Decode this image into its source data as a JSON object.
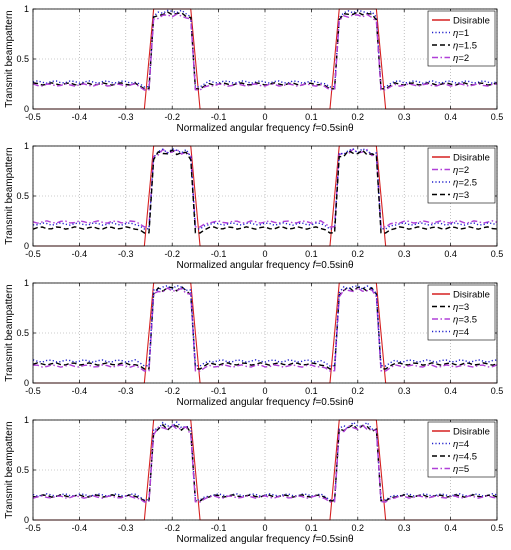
{
  "chart_data": [
    {
      "type": "line",
      "xlabel_prefix": "Normalized angular frequency ",
      "xlabel_var": "f",
      "xlabel_suffix": "=0.5sinθ",
      "ylabel": "Transmit beampattern",
      "xlim": [
        -0.5,
        0.5
      ],
      "ylim": [
        0,
        1
      ],
      "xticks": [
        "-0.5",
        "-0.4",
        "-0.3",
        "-0.2",
        "-0.1",
        "0",
        "0.1",
        "0.2",
        "0.3",
        "0.4",
        "0.5"
      ],
      "yticks": [
        "0",
        "0.5",
        "1"
      ],
      "grid": true,
      "legend_position": "top-right",
      "desired": {
        "name": "Disirable",
        "x": [
          -0.5,
          -0.26,
          -0.24,
          -0.16,
          -0.14,
          0.14,
          0.16,
          0.24,
          0.26,
          0.5
        ],
        "y": [
          0,
          0,
          1,
          1,
          0,
          0,
          1,
          1,
          0,
          0
        ]
      },
      "series": [
        {
          "name_prefix": "η=",
          "name": "1",
          "color": "#1f1fcc",
          "style": "dotted",
          "floor": 0.27,
          "main": 0.99,
          "ripple": 0.03
        },
        {
          "name_prefix": "η=",
          "name": "1.5",
          "color": "#000000",
          "style": "dashed",
          "floor": 0.25,
          "main": 0.97,
          "ripple": 0.03
        },
        {
          "name_prefix": "η=",
          "name": "2",
          "color": "#b040d8",
          "style": "dashdot",
          "floor": 0.24,
          "main": 0.95,
          "ripple": 0.03
        }
      ]
    },
    {
      "type": "line",
      "xlabel_prefix": "Normalized angular frequency ",
      "xlabel_var": "f",
      "xlabel_suffix": "=0.5sinθ",
      "ylabel": "Transmit beampattern",
      "xlim": [
        -0.5,
        0.5
      ],
      "ylim": [
        0,
        1
      ],
      "xticks": [
        "-0.5",
        "-0.4",
        "-0.3",
        "-0.2",
        "-0.1",
        "0",
        "0.1",
        "0.2",
        "0.3",
        "0.4",
        "0.5"
      ],
      "yticks": [
        "0",
        "0.5",
        "1"
      ],
      "grid": true,
      "legend_position": "top-right",
      "desired": {
        "name": "Disirable",
        "x": [
          -0.5,
          -0.26,
          -0.24,
          -0.16,
          -0.14,
          0.14,
          0.16,
          0.24,
          0.26,
          0.5
        ],
        "y": [
          0,
          0,
          1,
          1,
          0,
          0,
          1,
          1,
          0,
          0
        ]
      },
      "series": [
        {
          "name_prefix": "η=",
          "name": "2",
          "color": "#b040d8",
          "style": "dashdot",
          "floor": 0.24,
          "main": 0.97,
          "ripple": 0.05
        },
        {
          "name_prefix": "η=",
          "name": "2.5",
          "color": "#1f1fcc",
          "style": "dotted",
          "floor": 0.22,
          "main": 0.98,
          "ripple": 0.05
        },
        {
          "name_prefix": "η=",
          "name": "3",
          "color": "#000000",
          "style": "dashed",
          "floor": 0.18,
          "main": 0.96,
          "ripple": 0.05
        }
      ]
    },
    {
      "type": "line",
      "xlabel_prefix": "Normalized angular frequency ",
      "xlabel_var": "f",
      "xlabel_suffix": "=0.5sinθ",
      "ylabel": "Transmit beampattern",
      "xlim": [
        -0.5,
        0.5
      ],
      "ylim": [
        0,
        1
      ],
      "xticks": [
        "-0.5",
        "-0.4",
        "-0.3",
        "-0.2",
        "-0.1",
        "0",
        "0.1",
        "0.2",
        "0.3",
        "0.4",
        "0.5"
      ],
      "yticks": [
        "0",
        "0.5",
        "1"
      ],
      "grid": true,
      "legend_position": "top-right",
      "desired": {
        "name": "Disirable",
        "x": [
          -0.5,
          -0.26,
          -0.24,
          -0.16,
          -0.14,
          0.14,
          0.16,
          0.24,
          0.26,
          0.5
        ],
        "y": [
          0,
          0,
          1,
          1,
          0,
          0,
          1,
          1,
          0,
          0
        ]
      },
      "series": [
        {
          "name_prefix": "η=",
          "name": "3",
          "color": "#000000",
          "style": "dashed",
          "floor": 0.19,
          "main": 0.97,
          "ripple": 0.05
        },
        {
          "name_prefix": "η=",
          "name": "3.5",
          "color": "#b040d8",
          "style": "dashdot",
          "floor": 0.17,
          "main": 0.95,
          "ripple": 0.04
        },
        {
          "name_prefix": "η=",
          "name": "4",
          "color": "#1f1fcc",
          "style": "dotted",
          "floor": 0.22,
          "main": 0.98,
          "ripple": 0.04
        }
      ]
    },
    {
      "type": "line",
      "xlabel_prefix": "Normalized angular frequency ",
      "xlabel_var": "f",
      "xlabel_suffix": "=0.5sinθ",
      "ylabel": "Transmit beampattern",
      "xlim": [
        -0.5,
        0.5
      ],
      "ylim": [
        0,
        1
      ],
      "xticks": [
        "-0.5",
        "-0.4",
        "-0.3",
        "-0.2",
        "-0.1",
        "0",
        "0.1",
        "0.2",
        "0.3",
        "0.4",
        "0.5"
      ],
      "yticks": [
        "0",
        "0.5",
        "1"
      ],
      "grid": true,
      "legend_position": "top-right",
      "desired": {
        "name": "Disirable",
        "x": [
          -0.5,
          -0.26,
          -0.24,
          -0.16,
          -0.14,
          0.14,
          0.16,
          0.24,
          0.26,
          0.5
        ],
        "y": [
          0,
          0,
          1,
          1,
          0,
          0,
          1,
          1,
          0,
          0
        ]
      },
      "series": [
        {
          "name_prefix": "η=",
          "name": "4",
          "color": "#1f1fcc",
          "style": "dotted",
          "floor": 0.25,
          "main": 0.98,
          "ripple": 0.06
        },
        {
          "name_prefix": "η=",
          "name": "4.5",
          "color": "#000000",
          "style": "dashed",
          "floor": 0.24,
          "main": 0.96,
          "ripple": 0.06
        },
        {
          "name_prefix": "η=",
          "name": "5",
          "color": "#b040d8",
          "style": "dashdot",
          "floor": 0.23,
          "main": 0.95,
          "ripple": 0.05
        }
      ]
    }
  ]
}
